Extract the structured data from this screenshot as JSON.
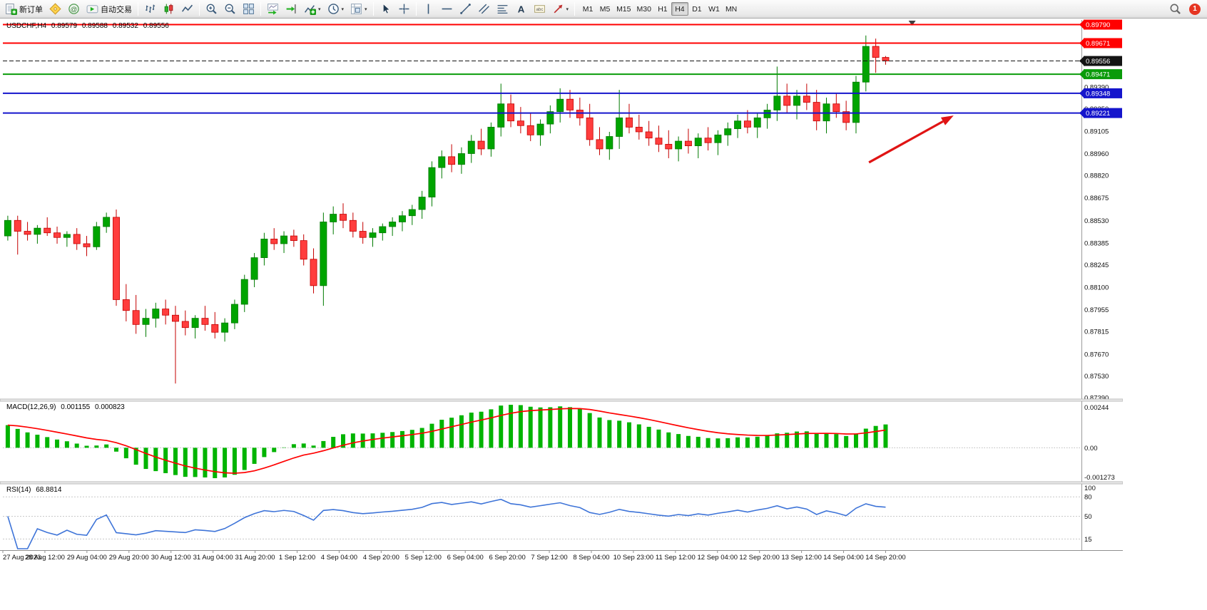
{
  "toolbar": {
    "timeframes": [
      "M1",
      "M5",
      "M15",
      "M30",
      "H1",
      "H4",
      "D1",
      "W1",
      "MN"
    ],
    "active_timeframe": "H4",
    "notification_count": "1",
    "groups": [
      {
        "items": [
          {
            "name": "new-order-button",
            "icon": "new-order",
            "label": "新订单"
          },
          {
            "name": "metaeditor-button",
            "icon": "metaeditor"
          },
          {
            "name": "community-button",
            "icon": "community"
          },
          {
            "name": "autotrading-button",
            "icon": "autotrading",
            "label": "自动交易"
          }
        ]
      },
      {
        "items": [
          {
            "name": "bar-chart-button",
            "icon": "chart-bars"
          },
          {
            "name": "candlestick-chart-button",
            "icon": "chart-candles"
          },
          {
            "name": "line-chart-button",
            "icon": "chart-line"
          }
        ]
      },
      {
        "items": [
          {
            "name": "zoom-in-button",
            "icon": "zoom-in"
          },
          {
            "name": "zoom-out-button",
            "icon": "zoom-out"
          },
          {
            "name": "tile-windows-button",
            "icon": "tile-windows"
          }
        ]
      },
      {
        "items": [
          {
            "name": "auto-scroll-button",
            "icon": "auto-scroll"
          },
          {
            "name": "chart-shift-button",
            "icon": "chart-shift"
          },
          {
            "name": "indicators-button",
            "icon": "indicators",
            "caret": true
          },
          {
            "name": "periods-button",
            "icon": "periods",
            "caret": true
          },
          {
            "name": "templates-button",
            "icon": "templates",
            "caret": true
          }
        ]
      },
      {
        "items": [
          {
            "name": "cursor-button",
            "icon": "cursor"
          },
          {
            "name": "crosshair-button",
            "icon": "crosshair"
          }
        ]
      },
      {
        "items": [
          {
            "name": "vertical-line-button",
            "icon": "vline"
          },
          {
            "name": "horizontal-line-button",
            "icon": "hline"
          },
          {
            "name": "trendline-button",
            "icon": "trendline"
          },
          {
            "name": "channel-button",
            "icon": "channel"
          },
          {
            "name": "fibonacci-button",
            "icon": "fibonacci"
          },
          {
            "name": "text-button",
            "icon": "text"
          },
          {
            "name": "text-label-button",
            "icon": "text-label"
          },
          {
            "name": "arrows-button",
            "icon": "arrows",
            "caret": true
          }
        ]
      }
    ]
  },
  "chart_header": {
    "symbol": "USDCHF,H4",
    "open": "0.89579",
    "high": "0.89588",
    "low": "0.89532",
    "close": "0.89556"
  },
  "indicators": {
    "macd": {
      "name": "MACD(12,26,9)",
      "value1": "0.001155",
      "value2": "0.000823",
      "axis": [
        "0.00244",
        "0.00",
        "-0.001273"
      ]
    },
    "rsi": {
      "name": "RSI(14)",
      "value": "68.8814",
      "axis": [
        "100",
        "80",
        "50",
        "15"
      ],
      "levels": [
        80,
        50,
        15
      ]
    }
  },
  "chart_data": {
    "type": "candlestick",
    "symbol": "USDCHF",
    "timeframe": "H4",
    "price_axis": {
      "min": 0.8738,
      "max": 0.8982,
      "labels": [
        "0.89390",
        "0.89250",
        "0.89105",
        "0.88960",
        "0.88820",
        "0.88675",
        "0.88530",
        "0.88385",
        "0.88245",
        "0.88100",
        "0.87955",
        "0.87815",
        "0.87670",
        "0.87530",
        "0.87390"
      ]
    },
    "price_lines": [
      {
        "label": "0.89790",
        "price": 0.8979,
        "color": "#ff0000",
        "width": 2,
        "style": "solid"
      },
      {
        "label": "0.89671",
        "price": 0.89671,
        "color": "#ff0000",
        "width": 2,
        "style": "solid"
      },
      {
        "label": "0.89556",
        "price": 0.89556,
        "color": "#141414",
        "width": 1,
        "style": "dashed",
        "role": "bid-price"
      },
      {
        "label": "0.89471",
        "price": 0.89471,
        "color": "#0a9b0a",
        "width": 2,
        "style": "solid"
      },
      {
        "label": "0.89348",
        "price": 0.89348,
        "color": "#1515cc",
        "width": 2,
        "style": "solid"
      },
      {
        "label": "0.89221",
        "price": 0.89221,
        "color": "#1515cc",
        "width": 2,
        "style": "solid"
      }
    ],
    "time_labels": [
      "27 Aug 2023",
      "28 Aug 12:00",
      "29 Aug 04:00",
      "29 Aug 20:00",
      "30 Aug 12:00",
      "31 Aug 04:00",
      "31 Aug 20:00",
      "1 Sep 12:00",
      "4 Sep 04:00",
      "4 Sep 20:00",
      "5 Sep 12:00",
      "6 Sep 04:00",
      "6 Sep 20:00",
      "7 Sep 12:00",
      "8 Sep 04:00",
      "10 Sep 23:00",
      "11 Sep 12:00",
      "12 Sep 04:00",
      "12 Sep 20:00",
      "13 Sep 12:00",
      "14 Sep 04:00",
      "14 Sep 20:00"
    ],
    "candles": [
      [
        0.8843,
        0.8856,
        0.884,
        0.8853
      ],
      [
        0.8853,
        0.8856,
        0.8831,
        0.8846
      ],
      [
        0.8846,
        0.8852,
        0.884,
        0.8844
      ],
      [
        0.8844,
        0.885,
        0.8838,
        0.8848
      ],
      [
        0.8848,
        0.8855,
        0.8843,
        0.8845
      ],
      [
        0.8845,
        0.8849,
        0.8838,
        0.8842
      ],
      [
        0.8842,
        0.8846,
        0.8836,
        0.8844
      ],
      [
        0.8844,
        0.8848,
        0.8834,
        0.8838
      ],
      [
        0.8838,
        0.8843,
        0.883,
        0.8836
      ],
      [
        0.8836,
        0.8852,
        0.8834,
        0.8849
      ],
      [
        0.8849,
        0.8858,
        0.8845,
        0.8855
      ],
      [
        0.8855,
        0.886,
        0.8798,
        0.8802
      ],
      [
        0.8802,
        0.8812,
        0.8788,
        0.8795
      ],
      [
        0.8795,
        0.8805,
        0.878,
        0.8786
      ],
      [
        0.8786,
        0.8796,
        0.8778,
        0.879
      ],
      [
        0.879,
        0.88,
        0.8784,
        0.8796
      ],
      [
        0.8796,
        0.8802,
        0.8786,
        0.8792
      ],
      [
        0.8792,
        0.8798,
        0.8748,
        0.8788
      ],
      [
        0.8788,
        0.8795,
        0.8779,
        0.8784
      ],
      [
        0.8784,
        0.8792,
        0.8777,
        0.879
      ],
      [
        0.879,
        0.8798,
        0.8782,
        0.8786
      ],
      [
        0.8786,
        0.8794,
        0.8777,
        0.8781
      ],
      [
        0.8781,
        0.879,
        0.8775,
        0.8787
      ],
      [
        0.8787,
        0.8802,
        0.8783,
        0.8799
      ],
      [
        0.8799,
        0.8818,
        0.8794,
        0.8815
      ],
      [
        0.8815,
        0.8832,
        0.881,
        0.8829
      ],
      [
        0.8829,
        0.8845,
        0.8824,
        0.8841
      ],
      [
        0.8841,
        0.8848,
        0.8834,
        0.8838
      ],
      [
        0.8838,
        0.8846,
        0.8832,
        0.8843
      ],
      [
        0.8843,
        0.8847,
        0.8836,
        0.884
      ],
      [
        0.884,
        0.8844,
        0.8824,
        0.8828
      ],
      [
        0.8828,
        0.8835,
        0.8806,
        0.8811
      ],
      [
        0.8811,
        0.8858,
        0.8798,
        0.8852
      ],
      [
        0.8852,
        0.8862,
        0.8844,
        0.8857
      ],
      [
        0.8857,
        0.8864,
        0.8848,
        0.8853
      ],
      [
        0.8853,
        0.8858,
        0.8842,
        0.8846
      ],
      [
        0.8846,
        0.8852,
        0.8838,
        0.8842
      ],
      [
        0.8842,
        0.8848,
        0.8836,
        0.8845
      ],
      [
        0.8845,
        0.8851,
        0.884,
        0.8849
      ],
      [
        0.8849,
        0.8855,
        0.8843,
        0.8852
      ],
      [
        0.8852,
        0.8859,
        0.8846,
        0.8856
      ],
      [
        0.8856,
        0.8863,
        0.885,
        0.886
      ],
      [
        0.886,
        0.8872,
        0.8854,
        0.8868
      ],
      [
        0.8868,
        0.8891,
        0.8862,
        0.8887
      ],
      [
        0.8887,
        0.8898,
        0.888,
        0.8894
      ],
      [
        0.8894,
        0.8902,
        0.8884,
        0.8889
      ],
      [
        0.8889,
        0.89,
        0.8883,
        0.8896
      ],
      [
        0.8896,
        0.8908,
        0.889,
        0.8904
      ],
      [
        0.8904,
        0.8912,
        0.8895,
        0.8899
      ],
      [
        0.8899,
        0.8916,
        0.8894,
        0.8913
      ],
      [
        0.8913,
        0.8941,
        0.8907,
        0.8928
      ],
      [
        0.8928,
        0.8934,
        0.8913,
        0.8917
      ],
      [
        0.8917,
        0.8926,
        0.8909,
        0.8914
      ],
      [
        0.8914,
        0.8922,
        0.8904,
        0.8908
      ],
      [
        0.8908,
        0.8918,
        0.8901,
        0.8915
      ],
      [
        0.8915,
        0.8927,
        0.8909,
        0.8923
      ],
      [
        0.8923,
        0.8938,
        0.8916,
        0.8931
      ],
      [
        0.8931,
        0.8937,
        0.8919,
        0.8924
      ],
      [
        0.8924,
        0.8932,
        0.8914,
        0.8919
      ],
      [
        0.8919,
        0.8928,
        0.8901,
        0.8905
      ],
      [
        0.8905,
        0.8913,
        0.8895,
        0.8899
      ],
      [
        0.8899,
        0.891,
        0.8892,
        0.8907
      ],
      [
        0.8907,
        0.8937,
        0.8899,
        0.8919
      ],
      [
        0.8919,
        0.8928,
        0.8909,
        0.8913
      ],
      [
        0.8913,
        0.8921,
        0.8905,
        0.891
      ],
      [
        0.891,
        0.8917,
        0.8901,
        0.8906
      ],
      [
        0.8906,
        0.8914,
        0.8897,
        0.8902
      ],
      [
        0.8902,
        0.8911,
        0.8893,
        0.8899
      ],
      [
        0.8899,
        0.8907,
        0.8891,
        0.8904
      ],
      [
        0.8904,
        0.8912,
        0.8896,
        0.8901
      ],
      [
        0.8901,
        0.8909,
        0.8893,
        0.8906
      ],
      [
        0.8906,
        0.8913,
        0.8898,
        0.8903
      ],
      [
        0.8903,
        0.8911,
        0.8895,
        0.8908
      ],
      [
        0.8908,
        0.8916,
        0.8901,
        0.8912
      ],
      [
        0.8912,
        0.8921,
        0.8906,
        0.8917
      ],
      [
        0.8917,
        0.8924,
        0.8909,
        0.8913
      ],
      [
        0.8913,
        0.8922,
        0.8906,
        0.8919
      ],
      [
        0.8919,
        0.8928,
        0.8912,
        0.8924
      ],
      [
        0.8924,
        0.8952,
        0.8917,
        0.8933
      ],
      [
        0.8933,
        0.8941,
        0.8922,
        0.8927
      ],
      [
        0.8927,
        0.8937,
        0.8918,
        0.8933
      ],
      [
        0.8933,
        0.8941,
        0.8924,
        0.8929
      ],
      [
        0.8929,
        0.8937,
        0.8911,
        0.8917
      ],
      [
        0.8917,
        0.8932,
        0.8909,
        0.8928
      ],
      [
        0.8928,
        0.8935,
        0.8919,
        0.8923
      ],
      [
        0.8923,
        0.893,
        0.8911,
        0.8916
      ],
      [
        0.8916,
        0.8946,
        0.8909,
        0.8942
      ],
      [
        0.8942,
        0.8972,
        0.8936,
        0.8965
      ],
      [
        0.8965,
        0.897,
        0.8948,
        0.89579
      ],
      [
        0.89579,
        0.89588,
        0.89532,
        0.89556
      ]
    ],
    "colors": {
      "up": "#00a400",
      "up_border": "#007a00",
      "down": "#ff3d3d",
      "down_border": "#c40000",
      "macd_hist": "#00b400",
      "macd_signal": "#ff0000",
      "rsi_line": "#3e74d8"
    },
    "layout": {
      "candles_right_frac": 0.823,
      "shift_marker_frac": 0.843,
      "legend_position": "top-left",
      "grid": false
    },
    "annotation_arrow": {
      "x1_frac": 0.803,
      "y1_price": 0.88903,
      "x2_frac": 0.8815,
      "y2_price": 0.89205,
      "color": "#e01414",
      "width": 3.2
    }
  }
}
